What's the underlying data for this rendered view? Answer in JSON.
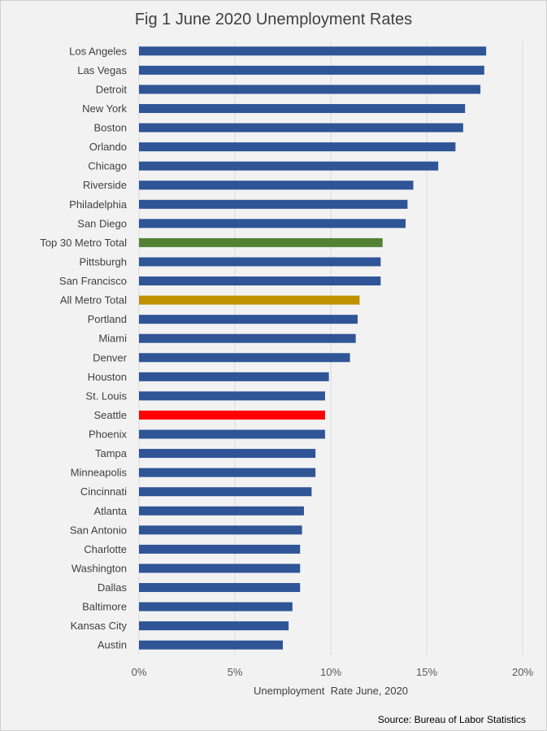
{
  "chart_data": {
    "type": "bar",
    "orientation": "horizontal",
    "title": "Fig 1 June 2020 Unemployment Rates",
    "xlabel": "Unemployment  Rate June, 2020",
    "ylabel": "",
    "xlim": [
      0,
      20
    ],
    "x_ticks": [
      "0%",
      "5%",
      "10%",
      "15%",
      "20%"
    ],
    "grid": "vertical",
    "source": "Source: Bureau of Labor Statistics",
    "categories": [
      "Los Angeles",
      "Las Vegas",
      "Detroit",
      "New York",
      "Boston",
      "Orlando",
      "Chicago",
      "Riverside",
      "Philadelphia",
      "San Diego",
      "Top 30 Metro Total",
      "Pittsburgh",
      "San Francisco",
      "All Metro Total",
      "Portland",
      "Miami",
      "Denver",
      "Houston",
      "St. Louis",
      "Seattle",
      "Phoenix",
      "Tampa",
      "Minneapolis",
      "Cincinnati",
      "Atlanta",
      "San Antonio",
      "Charlotte",
      "Washington",
      "Dallas",
      "Baltimore",
      "Kansas City",
      "Austin"
    ],
    "values": [
      18.1,
      18.0,
      17.8,
      17.0,
      16.9,
      16.5,
      15.6,
      14.3,
      14.0,
      13.9,
      12.7,
      12.6,
      12.6,
      11.5,
      11.4,
      11.3,
      11.0,
      9.9,
      9.7,
      9.7,
      9.7,
      9.2,
      9.2,
      9.0,
      8.6,
      8.5,
      8.4,
      8.4,
      8.4,
      8.0,
      7.8,
      7.5
    ],
    "colors": {
      "default": "#2f5597",
      "Top 30 Metro Total": "#548235",
      "All Metro Total": "#bf9000",
      "Seattle": "#ff0000"
    },
    "gridline_color": "#d9d9d9"
  }
}
